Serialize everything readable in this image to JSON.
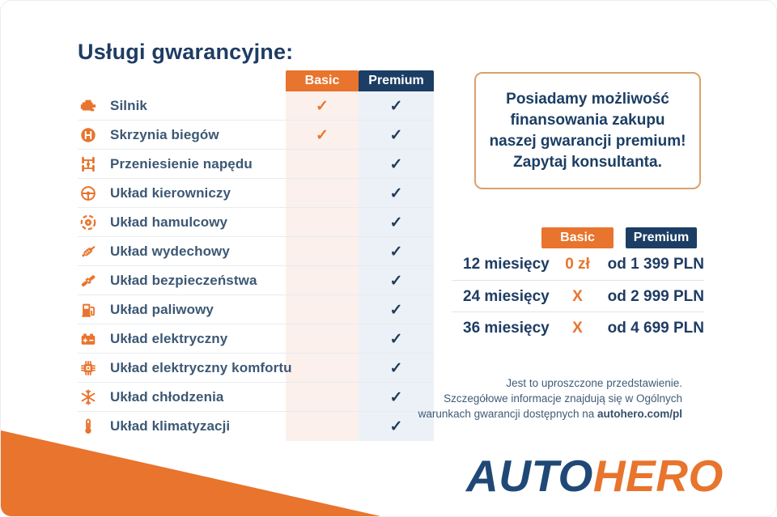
{
  "title": "Usługi gwarancyjne:",
  "colors": {
    "orange": "#E8742D",
    "navy": "#1C3E64",
    "basic_column_bg": "#FBF0EB",
    "premium_column_bg": "#ECF1F7",
    "promo_border": "#D9A26A"
  },
  "check_symbol": "✓",
  "services": {
    "columns": [
      "Basic",
      "Premium"
    ],
    "rows": [
      {
        "label": "Silnik",
        "icon": "engine-icon",
        "basic": true,
        "premium": true
      },
      {
        "label": "Skrzynia biegów",
        "icon": "gearbox-icon",
        "basic": true,
        "premium": true
      },
      {
        "label": "Przeniesienie napędu",
        "icon": "drivetrain-icon",
        "basic": false,
        "premium": true
      },
      {
        "label": "Układ kierowniczy",
        "icon": "steering-wheel-icon",
        "basic": false,
        "premium": true
      },
      {
        "label": "Układ hamulcowy",
        "icon": "brake-disc-icon",
        "basic": false,
        "premium": true
      },
      {
        "label": "Układ wydechowy",
        "icon": "exhaust-icon",
        "basic": false,
        "premium": true
      },
      {
        "label": "Układ bezpieczeństwa",
        "icon": "seatbelt-icon",
        "basic": false,
        "premium": true
      },
      {
        "label": "Układ paliwowy",
        "icon": "fuel-pump-icon",
        "basic": false,
        "premium": true
      },
      {
        "label": "Układ elektryczny",
        "icon": "battery-icon",
        "basic": false,
        "premium": true
      },
      {
        "label": "Układ elektryczny komfortu",
        "icon": "chip-icon",
        "basic": false,
        "premium": true
      },
      {
        "label": "Układ chłodzenia",
        "icon": "snowflake-icon",
        "basic": false,
        "premium": true
      },
      {
        "label": "Układ klimatyzacji",
        "icon": "thermometer-icon",
        "basic": false,
        "premium": true
      }
    ]
  },
  "promo": {
    "lines": [
      "Posiadamy możliwość",
      "finansowania zakupu",
      "naszej gwarancji premium!",
      "Zapytaj konsultanta."
    ]
  },
  "pricing": {
    "columns": [
      "Basic",
      "Premium"
    ],
    "rows": [
      {
        "period": "12 miesięcy",
        "basic": "0 zł",
        "premium": "od 1 399 PLN"
      },
      {
        "period": "24 miesięcy",
        "basic": "X",
        "premium": "od 2 999 PLN"
      },
      {
        "period": "36 miesięcy",
        "basic": "X",
        "premium": "od 4 699 PLN"
      }
    ]
  },
  "disclaimer": {
    "line1": "Jest to uproszczone przedstawienie.",
    "line2": "Szczegółowe informacje znajdują się w Ogólnych",
    "line3_prefix": "warunkach gwarancji dostępnych na ",
    "link": "autohero.com/pl"
  },
  "logo": {
    "part1": "AUTO",
    "part2": "HERO"
  }
}
